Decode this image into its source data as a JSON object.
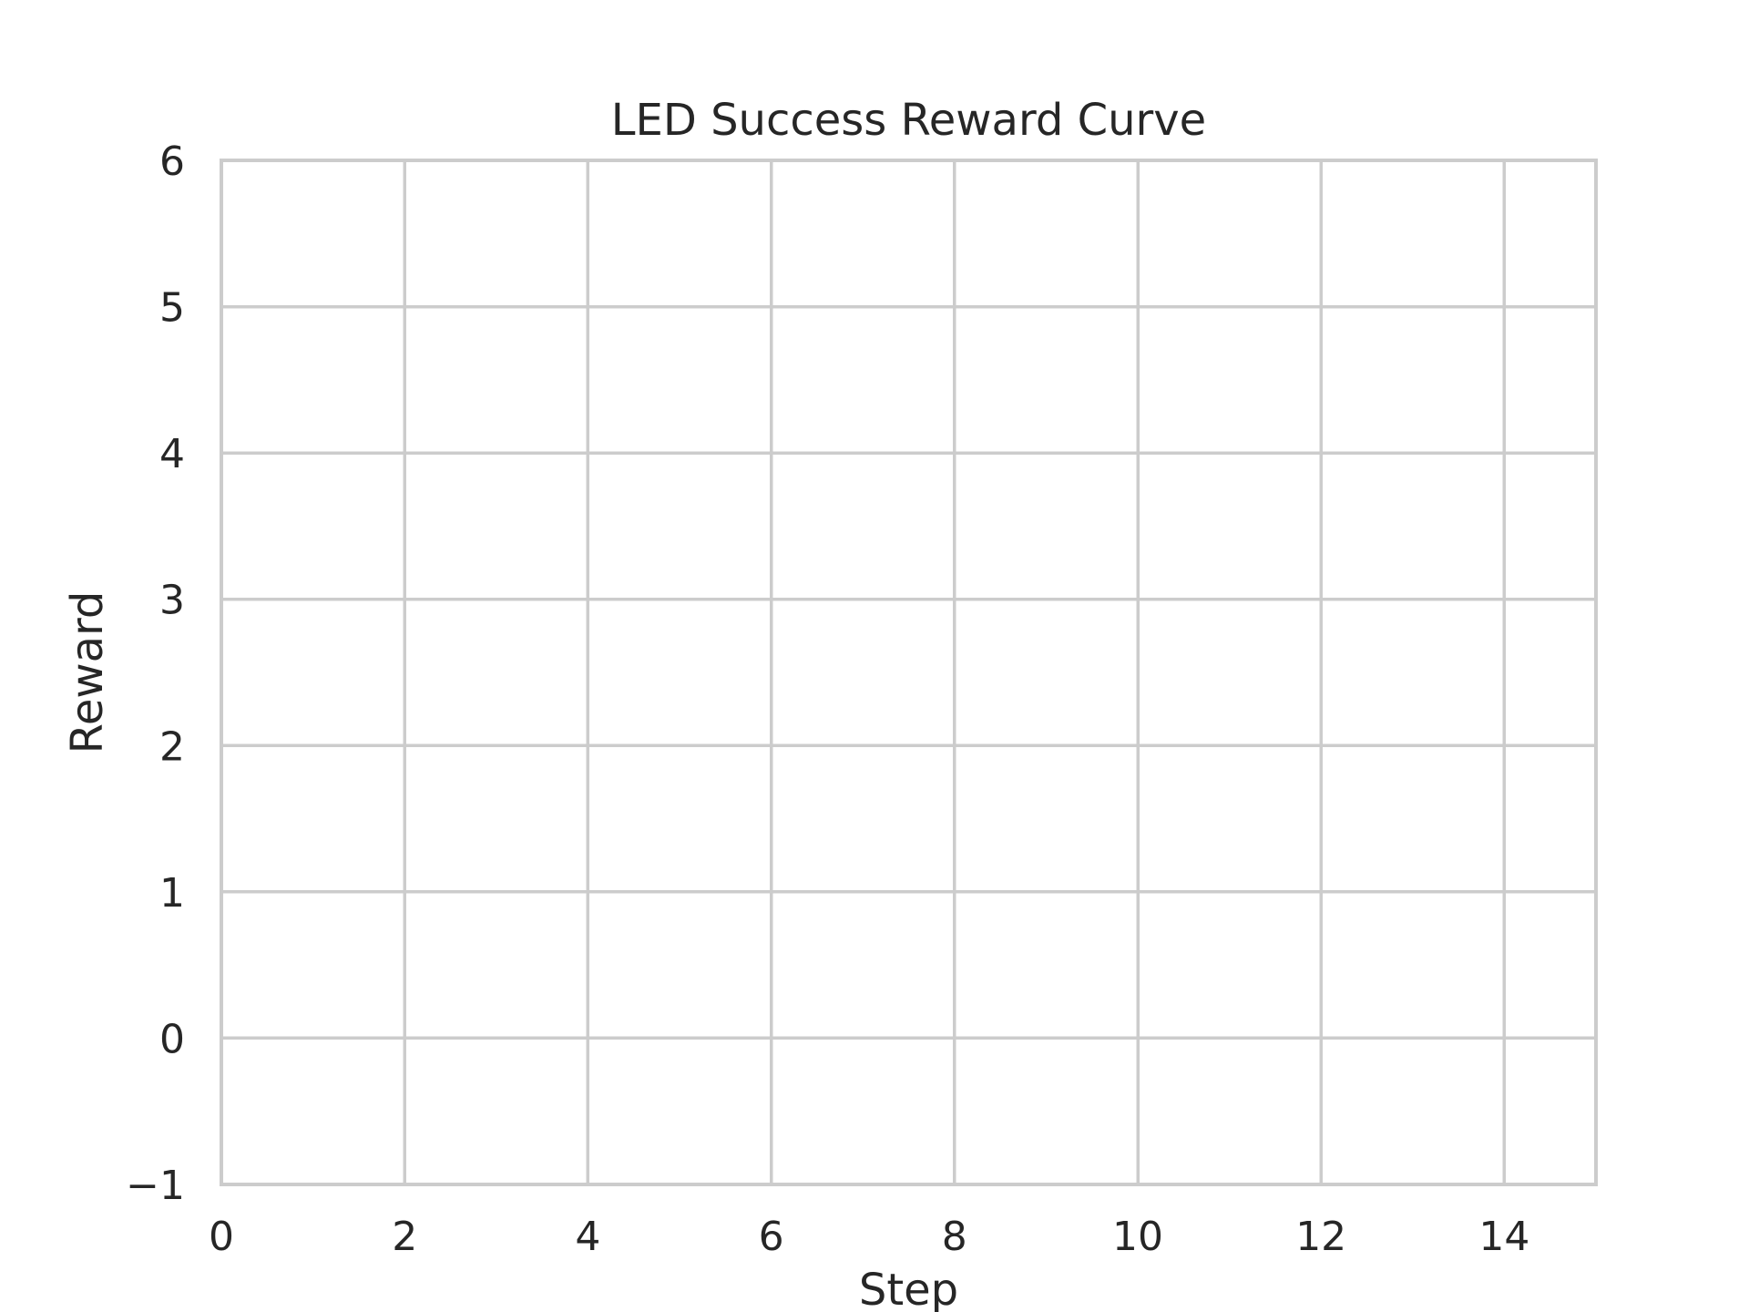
{
  "chart_data": {
    "type": "line",
    "title": "LED Success Reward Curve",
    "xlabel": "Step",
    "ylabel": "Reward",
    "xlim": [
      0,
      15
    ],
    "ylim": [
      -1,
      6
    ],
    "x_ticks": [
      0,
      2,
      4,
      6,
      8,
      10,
      12,
      14
    ],
    "x_tick_labels": [
      "0",
      "2",
      "4",
      "6",
      "8",
      "10",
      "12",
      "14"
    ],
    "y_ticks": [
      -1,
      0,
      1,
      2,
      3,
      4,
      5,
      6
    ],
    "y_tick_labels": [
      "−1",
      "0",
      "1",
      "2",
      "3",
      "4",
      "5",
      "6"
    ],
    "grid": true,
    "legend": "none",
    "series": [],
    "colors": {
      "grid": "#cccccc",
      "text": "#262626",
      "background": "#ffffff"
    }
  }
}
